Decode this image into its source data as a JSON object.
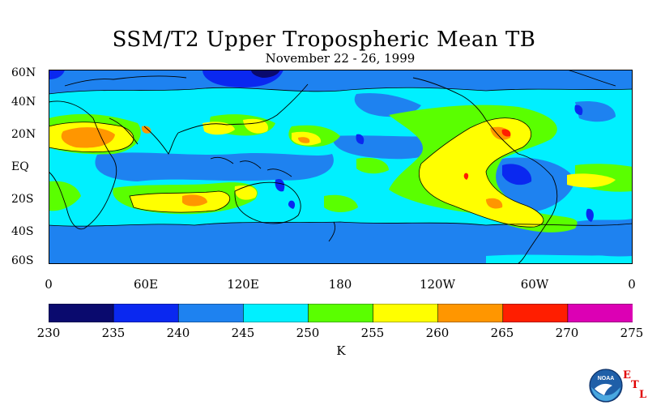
{
  "header": {
    "title": "SSM/T2 Upper Tropospheric Mean TB",
    "subtitle": "November 22 - 26, 1999"
  },
  "map": {
    "lat_labels": [
      "60N",
      "40N",
      "20N",
      "EQ",
      "20S",
      "40S",
      "60S"
    ],
    "lon_labels": [
      "0",
      "60E",
      "120E",
      "180",
      "120W",
      "60W",
      "0"
    ]
  },
  "colorbar": {
    "levels": [
      "230",
      "235",
      "240",
      "245",
      "250",
      "255",
      "260",
      "265",
      "270",
      "275"
    ],
    "colors": [
      "#0a0a6e",
      "#0a28f0",
      "#1e82f0",
      "#00f0ff",
      "#5aff00",
      "#ffff00",
      "#ff9600",
      "#ff1e00",
      "#dc00b4"
    ],
    "units": "K"
  },
  "logo": {
    "name": "noaa-logo",
    "text": "NOAA",
    "letters": [
      "E",
      "T",
      "L"
    ]
  }
}
